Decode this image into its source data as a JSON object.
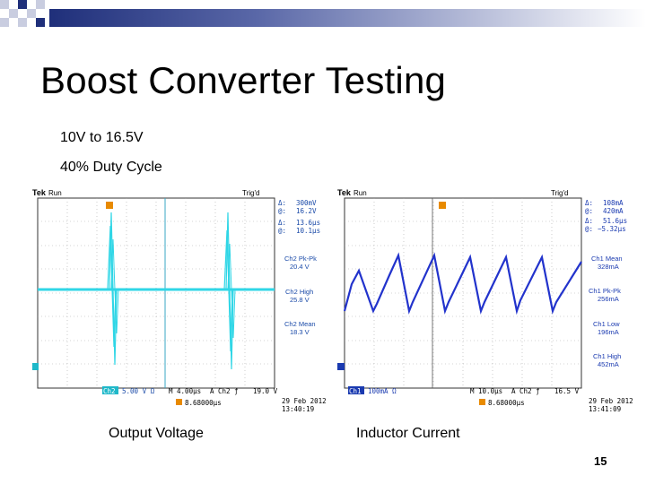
{
  "slide": {
    "title": "Boost Converter Testing",
    "line1": "10V to 16.5V",
    "line2": "40% Duty Cycle",
    "page_number": "15"
  },
  "scope_left": {
    "brand": "Tek",
    "mode": "Run",
    "trig": "Trig'd",
    "cursor_delta_v": "300mV",
    "cursor_at_v": "16.2V",
    "cursor_delta_t": "13.6μs",
    "cursor_at_t": "10.1μs",
    "meas1_label": "Ch2 Pk-Pk",
    "meas1_value": "20.4 V",
    "meas2_label": "Ch2 High",
    "meas2_value": "25.8 V",
    "meas3_label": "Ch2 Mean",
    "meas3_value": "18.3 V",
    "ch_label": "Ch2",
    "ch_scale": "5.00 V Ω",
    "time_scale": "M 4.00μs",
    "trig_src": "A  Ch2  ƒ",
    "trig_level": "19.0 V",
    "pos": "8.68000μs",
    "date": "29 Feb 2012",
    "time": "13:40:19",
    "trace_color": "#2fd6e6",
    "caption": "Output Voltage"
  },
  "scope_right": {
    "brand": "Tek",
    "mode": "Run",
    "trig": "Trig'd",
    "cursor_delta_v": "108mA",
    "cursor_at_v": "420mA",
    "cursor_delta_t": "51.6μs",
    "cursor_at_t": "−5.32μs",
    "meas1_label": "Ch1 Mean",
    "meas1_value": "328mA",
    "meas2_label": "Ch1 Pk-Pk",
    "meas2_value": "256mA",
    "meas3_label": "Ch1 Low",
    "meas3_value": "196mA",
    "meas4_label": "Ch1 High",
    "meas4_value": "452mA",
    "ch_label": "Ch1",
    "ch_scale": "100mA Ω",
    "time_scale": "M 10.0μs",
    "trig_src": "A  Ch2  ƒ",
    "trig_level": "16.5 V",
    "pos": "8.68000μs",
    "date": "29 Feb 2012",
    "time": "13:41:09",
    "trace_color": "#2233cc",
    "caption": "Inductor Current"
  }
}
